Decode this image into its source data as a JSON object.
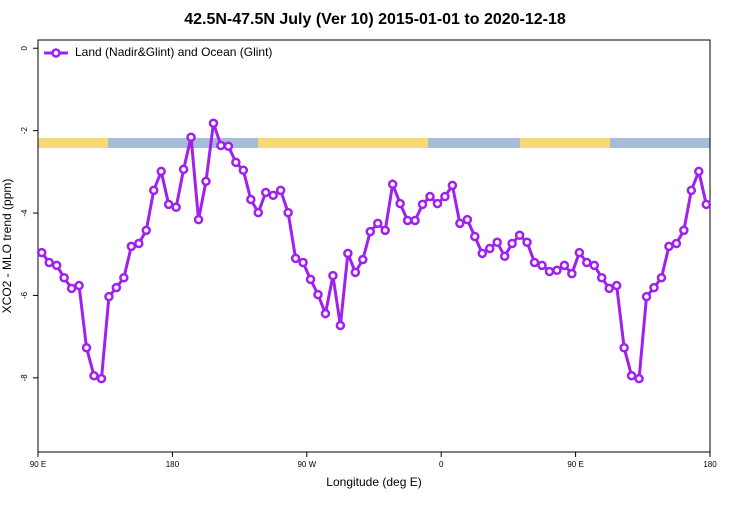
{
  "chart_data": {
    "type": "line",
    "title": "42.5N-47.5N July (Ver 10)   2015-01-01 to 2020-12-18",
    "x_label": "Longitude (deg E)",
    "y_label": "XCO2 - MLO trend (ppm)",
    "x": [
      92.5,
      97.5,
      102.5,
      107.5,
      112.5,
      117.5,
      122.5,
      127.5,
      132.5,
      137.5,
      142.5,
      147.5,
      152.5,
      157.5,
      162.5,
      167.5,
      172.5,
      177.5,
      182.5,
      187.5,
      192.5,
      197.5,
      202.5,
      207.5,
      212.5,
      217.5,
      222.5,
      227.5,
      232.5,
      237.5,
      242.5,
      247.5,
      252.5,
      257.5,
      262.5,
      267.5,
      272.5,
      277.5,
      282.5,
      287.5,
      292.5,
      297.5,
      302.5,
      307.5,
      312.5,
      317.5,
      322.5,
      327.5,
      332.5,
      337.5,
      342.5,
      347.5,
      352.5,
      357.5,
      362.5,
      367.5,
      372.5,
      377.5,
      382.5,
      387.5,
      392.5,
      397.5,
      402.5,
      407.5,
      412.5,
      417.5,
      422.5,
      427.5,
      432.5,
      437.5,
      442.5,
      447.5,
      452.5,
      457.5,
      462.5,
      467.5,
      472.5,
      477.5,
      482.5,
      487.5,
      492.5,
      497.5,
      502.5,
      507.5,
      512.5,
      517.5,
      522.5,
      527.5,
      532.5,
      537.5
    ],
    "series": [
      {
        "name": "Land (Nadir&Glint) and Ocean (Glint)",
        "color": "#a020f0",
        "values": [
          -4.96,
          -5.2,
          -5.27,
          -5.57,
          -5.83,
          -5.76,
          -7.27,
          -7.95,
          -8.02,
          -6.03,
          -5.81,
          -5.57,
          -4.81,
          -4.74,
          -4.42,
          -3.45,
          -2.99,
          -3.79,
          -3.86,
          -2.94,
          -2.16,
          -4.16,
          -3.23,
          -1.82,
          -2.36,
          -2.38,
          -2.77,
          -2.96,
          -3.67,
          -3.99,
          -3.5,
          -3.57,
          -3.45,
          -3.99,
          -5.1,
          -5.2,
          -5.61,
          -5.98,
          -6.44,
          -5.52,
          -6.73,
          -4.98,
          -5.44,
          -5.13,
          -4.45,
          -4.25,
          -4.42,
          -3.3,
          -3.77,
          -4.18,
          -4.18,
          -3.79,
          -3.6,
          -3.77,
          -3.6,
          -3.33,
          -4.25,
          -4.16,
          -4.57,
          -4.98,
          -4.86,
          -4.71,
          -5.05,
          -4.74,
          -4.54,
          -4.71,
          -5.2,
          -5.27,
          -5.42,
          -5.39,
          -5.27,
          -5.47,
          -4.96,
          -5.2,
          -5.27,
          -5.57,
          -5.83,
          -5.76,
          -7.27,
          -7.95,
          -8.02,
          -6.03,
          -5.81,
          -5.57,
          -4.81,
          -4.74,
          -4.42,
          -3.45,
          -2.99,
          -3.79
        ]
      }
    ],
    "xlim": [
      90,
      540
    ],
    "xticks": [
      {
        "value": 90,
        "label": "90 E"
      },
      180,
      {
        "value": 270,
        "label": "90 W"
      },
      {
        "value": 360,
        "label": "0"
      },
      {
        "value": 450,
        "label": "90 E"
      },
      {
        "value": 540,
        "label": "180"
      }
    ],
    "ylim": [
      -9.8,
      0.2
    ],
    "yticks": [
      0,
      -2,
      -4,
      -6,
      -8
    ],
    "legend": "top-left"
  }
}
